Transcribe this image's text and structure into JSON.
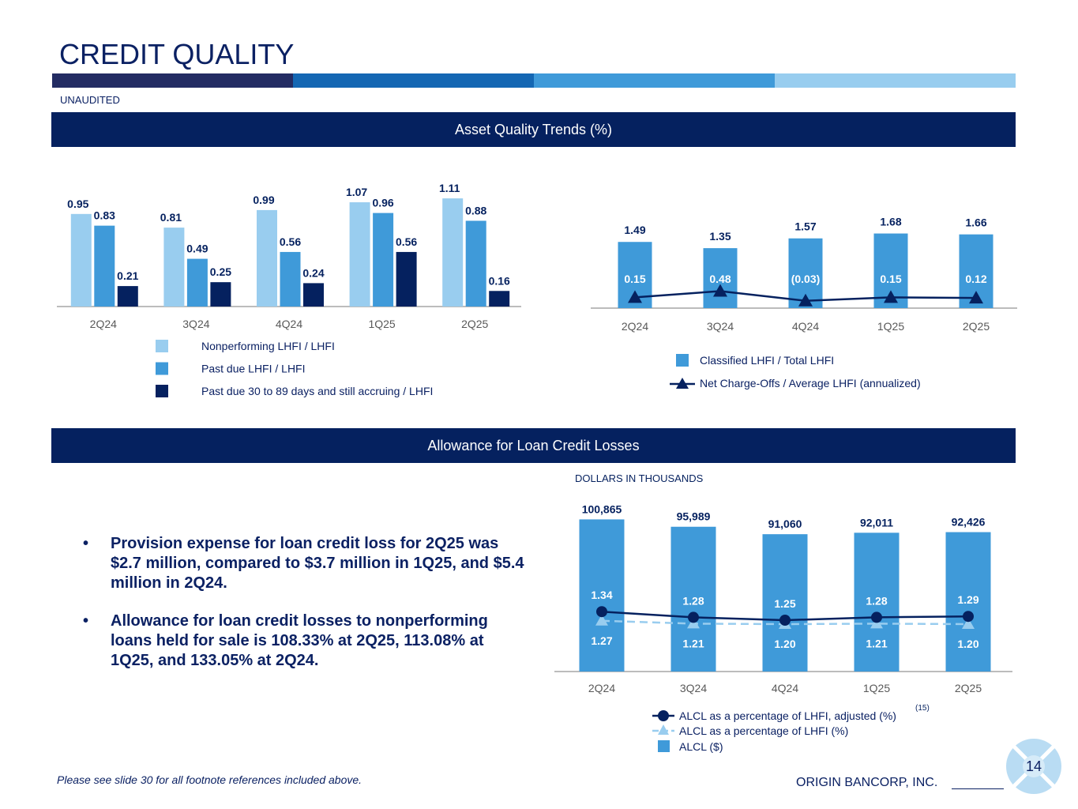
{
  "header": {
    "title": "CREDIT QUALITY",
    "subtitle": "UNAUDITED",
    "stripe_colors": [
      "#232c63",
      "#1467b3",
      "#3f9ad9",
      "#98cdef"
    ]
  },
  "banners": {
    "asset_quality": "Asset Quality Trends (%)",
    "allowance": "Allowance for Loan Credit Losses"
  },
  "colors": {
    "navy": "#05215f",
    "mid_blue": "#3f9ad9",
    "light_blue": "#99cdef",
    "axis": "#a6a6a6",
    "tick_text": "#595959"
  },
  "chart_data": [
    {
      "id": "asset-quality-bars",
      "type": "bar",
      "categories": [
        "2Q24",
        "3Q24",
        "4Q24",
        "1Q25",
        "2Q25"
      ],
      "series": [
        {
          "name": "Nonperforming LHFI / LHFI",
          "values": [
            0.95,
            0.81,
            0.99,
            1.07,
            1.11
          ],
          "labels": [
            "0.95",
            "0.81",
            "0.99",
            "1.07",
            "1.11"
          ]
        },
        {
          "name": "Past due LHFI / LHFI",
          "values": [
            0.83,
            0.49,
            0.56,
            0.96,
            0.88
          ],
          "labels": [
            "0.83",
            "0.49",
            "0.56",
            "0.96",
            "0.88"
          ]
        },
        {
          "name": "Past due 30 to 89 days and still accruing / LHFI",
          "values": [
            0.21,
            0.25,
            0.24,
            0.56,
            0.16
          ],
          "labels": [
            "0.21",
            "0.25",
            "0.24",
            "0.56",
            "0.16"
          ]
        }
      ],
      "ylim": [
        0,
        1.2
      ],
      "legend": "bottom"
    },
    {
      "id": "classified-chart",
      "type": "bar",
      "categories": [
        "2Q24",
        "3Q24",
        "4Q24",
        "1Q25",
        "2Q25"
      ],
      "series": [
        {
          "name": "Classified LHFI / Total LHFI",
          "kind": "bar",
          "values": [
            1.49,
            1.35,
            1.57,
            1.68,
            1.66
          ],
          "labels": [
            "1.49",
            "1.35",
            "1.57",
            "1.68",
            "1.66"
          ]
        },
        {
          "name": "Net Charge-Offs / Average LHFI (annualized)",
          "kind": "line",
          "values": [
            0.15,
            0.48,
            -0.03,
            0.15,
            0.12
          ],
          "labels": [
            "0.15",
            "0.48",
            "(0.03)",
            "0.15",
            "0.12"
          ]
        }
      ],
      "ylim": [
        0,
        1.8
      ],
      "legend": "bottom"
    },
    {
      "id": "alcl-chart",
      "type": "bar",
      "note": "DOLLARS IN THOUSANDS",
      "categories": [
        "2Q24",
        "3Q24",
        "4Q24",
        "1Q25",
        "2Q25"
      ],
      "series": [
        {
          "name": "ALCL ($)",
          "kind": "bar",
          "values": [
            100865,
            95989,
            91060,
            92011,
            92426
          ],
          "labels": [
            "100,865",
            "95,989",
            "91,060",
            "92,011",
            "92,426"
          ]
        },
        {
          "name": "ALCL as a percentage of LHFI, adjusted (%)",
          "footnote": "(15)",
          "kind": "line",
          "values": [
            1.34,
            1.28,
            1.25,
            1.28,
            1.29
          ],
          "labels": [
            "1.34",
            "1.28",
            "1.25",
            "1.28",
            "1.29"
          ]
        },
        {
          "name": "ALCL as a percentage of LHFI (%)",
          "kind": "dashed-line",
          "values": [
            1.27,
            1.21,
            1.2,
            1.21,
            1.2
          ],
          "labels": [
            "1.27",
            "1.21",
            "1.20",
            "1.21",
            "1.20"
          ]
        }
      ],
      "ylim": [
        0,
        110000
      ],
      "legend": "bottom"
    }
  ],
  "bullets": [
    "Provision expense for loan credit loss for 2Q25 was $2.7 million, compared to $3.7 million in 1Q25, and $5.4 million in 2Q24.",
    "Allowance for loan credit losses to nonperforming loans held for sale is 108.33% at 2Q25, 113.08% at 1Q25, and 133.05% at 2Q24."
  ],
  "bullet_symbol": "•",
  "footer": {
    "footnote": "Please see slide 30 for all footnote references included above.",
    "company": "ORIGIN BANCORP, INC.",
    "page_number": "14"
  }
}
